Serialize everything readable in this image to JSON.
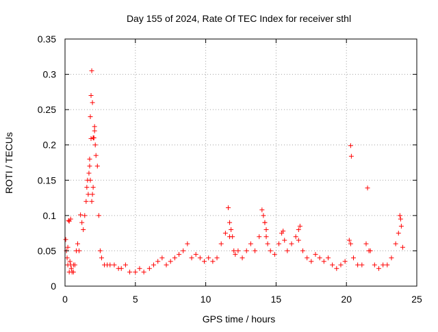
{
  "chart_data": {
    "type": "scatter",
    "title": "Day 155 of 2024, Rate Of TEC Index for receiver sthl",
    "xlabel": "GPS time / hours",
    "ylabel": "ROTI / TECUs",
    "xlim": [
      0,
      25
    ],
    "ylim": [
      0,
      0.35
    ],
    "xticks": [
      0,
      5,
      10,
      15,
      20,
      25
    ],
    "xtick_labels": [
      "0",
      "5",
      "10",
      "15",
      "20",
      "25"
    ],
    "yticks": [
      0,
      0.05,
      0.1,
      0.15,
      0.2,
      0.25,
      0.3,
      0.35
    ],
    "ytick_labels": [
      "0",
      "0.05",
      "0.1",
      "0.15",
      "0.2",
      "0.25",
      "0.3",
      "0.35"
    ],
    "grid": true,
    "marker": "+",
    "color": "#ff0000",
    "series": [
      {
        "name": "ROTI",
        "x": [
          0.05,
          0.1,
          0.15,
          0.2,
          0.25,
          0.3,
          0.35,
          0.4,
          0.45,
          0.5,
          0.6,
          0.7,
          0.8,
          0.9,
          1.0,
          1.1,
          1.2,
          1.3,
          1.4,
          1.5,
          1.55,
          1.6,
          1.65,
          1.7,
          1.75,
          1.8,
          1.85,
          1.9,
          1.95,
          2.0,
          2.05,
          2.1,
          2.15,
          2.2,
          2.3,
          2.4,
          2.5,
          2.6,
          2.8,
          3.0,
          3.2,
          3.5,
          3.8,
          4.0,
          4.3,
          4.6,
          5.0,
          5.3,
          5.6,
          6.0,
          6.3,
          6.6,
          6.9,
          7.2,
          7.5,
          7.8,
          8.1,
          8.4,
          8.7,
          9.0,
          9.3,
          9.6,
          9.9,
          10.2,
          10.5,
          10.8,
          11.1,
          11.4,
          11.6,
          11.7,
          11.8,
          11.9,
          12.0,
          12.1,
          12.3,
          12.6,
          12.9,
          13.2,
          13.5,
          13.8,
          14.0,
          14.1,
          14.2,
          14.3,
          14.4,
          14.6,
          14.9,
          15.2,
          15.4,
          15.5,
          15.6,
          15.8,
          16.1,
          16.4,
          16.6,
          16.7,
          16.9,
          17.2,
          17.5,
          17.8,
          18.1,
          18.4,
          18.7,
          19.0,
          19.3,
          19.6,
          19.9,
          20.2,
          20.3,
          20.35,
          20.5,
          20.8,
          21.1,
          21.4,
          21.5,
          21.7,
          22.0,
          22.3,
          22.6,
          22.9,
          23.2,
          23.5,
          23.7,
          23.8,
          23.85,
          23.9,
          24.0,
          0.2,
          0.4,
          1.9,
          1.95,
          2.0,
          1.85,
          1.8,
          2.1,
          2.05,
          1.75,
          20.3,
          21.6,
          11.7,
          14.2,
          14.3,
          16.6,
          0.3,
          0.6
        ],
        "y": [
          0.066,
          0.05,
          0.04,
          0.03,
          0.093,
          0.092,
          0.035,
          0.03,
          0.025,
          0.02,
          0.02,
          0.03,
          0.05,
          0.06,
          0.05,
          0.101,
          0.09,
          0.08,
          0.1,
          0.12,
          0.14,
          0.15,
          0.13,
          0.16,
          0.17,
          0.24,
          0.27,
          0.305,
          0.26,
          0.21,
          0.21,
          0.226,
          0.2,
          0.185,
          0.17,
          0.1,
          0.05,
          0.04,
          0.03,
          0.03,
          0.03,
          0.03,
          0.025,
          0.025,
          0.03,
          0.02,
          0.02,
          0.025,
          0.02,
          0.025,
          0.03,
          0.035,
          0.04,
          0.03,
          0.035,
          0.04,
          0.045,
          0.05,
          0.06,
          0.04,
          0.045,
          0.04,
          0.035,
          0.04,
          0.035,
          0.04,
          0.06,
          0.075,
          0.111,
          0.09,
          0.08,
          0.07,
          0.05,
          0.045,
          0.05,
          0.04,
          0.05,
          0.06,
          0.05,
          0.07,
          0.108,
          0.1,
          0.09,
          0.08,
          0.06,
          0.05,
          0.045,
          0.06,
          0.075,
          0.078,
          0.065,
          0.05,
          0.06,
          0.07,
          0.08,
          0.085,
          0.05,
          0.04,
          0.035,
          0.045,
          0.04,
          0.035,
          0.04,
          0.03,
          0.025,
          0.03,
          0.035,
          0.065,
          0.199,
          0.184,
          0.04,
          0.03,
          0.03,
          0.06,
          0.139,
          0.05,
          0.03,
          0.025,
          0.03,
          0.03,
          0.04,
          0.06,
          0.075,
          0.1,
          0.095,
          0.085,
          0.055,
          0.055,
          0.095,
          0.12,
          0.13,
          0.14,
          0.209,
          0.15,
          0.22,
          0.21,
          0.18,
          0.06,
          0.05,
          0.07,
          0.09,
          0.07,
          0.065,
          0.02,
          0.03
        ]
      }
    ]
  }
}
